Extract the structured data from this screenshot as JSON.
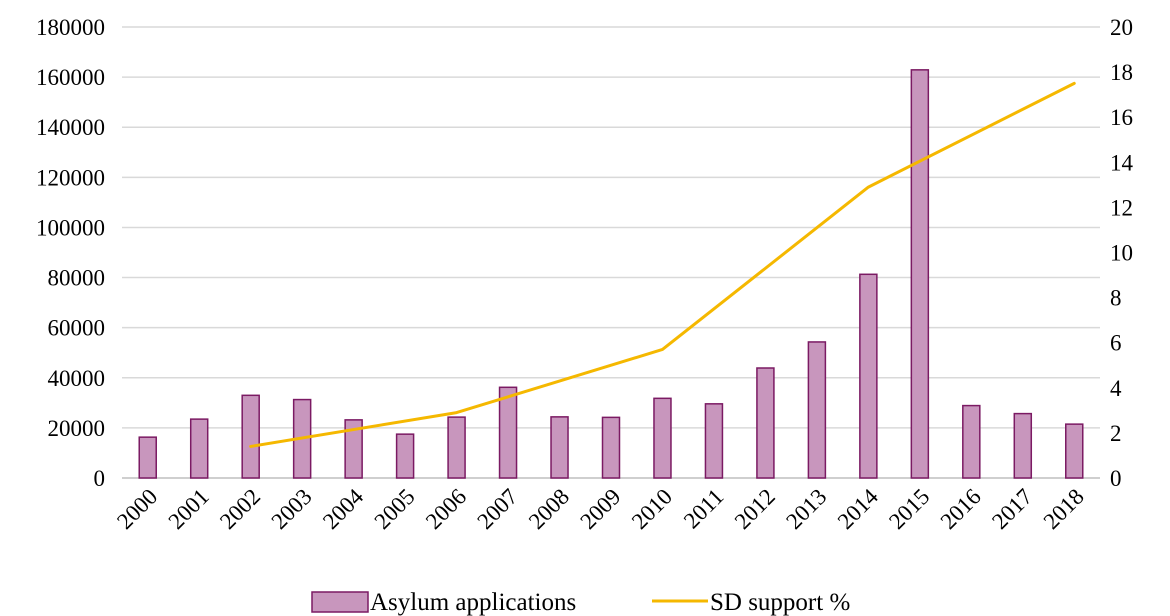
{
  "chart_data": {
    "type": "bar",
    "categories": [
      "2000",
      "2001",
      "2002",
      "2003",
      "2004",
      "2005",
      "2006",
      "2007",
      "2008",
      "2009",
      "2010",
      "2011",
      "2012",
      "2013",
      "2014",
      "2015",
      "2016",
      "2017",
      "2018"
    ],
    "series": [
      {
        "name": "Asylum applications",
        "type": "bar",
        "axis": "left",
        "values": [
          16300,
          23500,
          33000,
          31300,
          23200,
          17500,
          24300,
          36200,
          24400,
          24200,
          31800,
          29600,
          43900,
          54300,
          81300,
          162900,
          28900,
          25700,
          21500
        ]
      },
      {
        "name": "SD support %",
        "type": "line",
        "axis": "right",
        "values": [
          null,
          null,
          1.4,
          null,
          null,
          null,
          2.9,
          null,
          null,
          null,
          5.7,
          null,
          null,
          null,
          12.9,
          null,
          null,
          null,
          17.5
        ]
      }
    ],
    "ylim_left": [
      0,
      180000
    ],
    "yticks_left": [
      "0",
      "20000",
      "40000",
      "60000",
      "80000",
      "100000",
      "120000",
      "140000",
      "160000",
      "180000"
    ],
    "ylim_right": [
      0,
      20
    ],
    "yticks_right": [
      "0",
      "2",
      "4",
      "6",
      "8",
      "10",
      "12",
      "14",
      "16",
      "18",
      "20"
    ],
    "grid": true,
    "legend_position": "bottom",
    "colors": {
      "bar_fill": "#c896bd",
      "bar_stroke": "#7b1a63",
      "line": "#f5b800",
      "grid": "#d9d9d9",
      "axis": "#bfbfbf"
    }
  }
}
